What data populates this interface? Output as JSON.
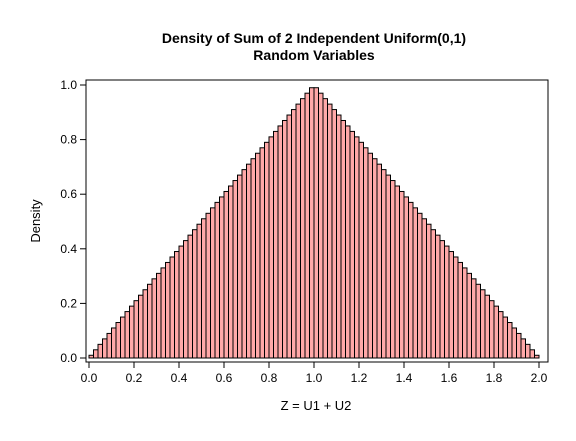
{
  "chart_data": {
    "type": "bar",
    "title_line1": "Density of Sum of 2 Independent Uniform(0,1)",
    "title_line2": "Random Variables",
    "xlabel": "Z = U1 + U2",
    "ylabel": "Density",
    "xlim": [
      0,
      2
    ],
    "ylim": [
      0,
      1
    ],
    "bin_width": 0.02,
    "bin_start": 0,
    "bin_count": 100,
    "bins": "triangular density f(z) = z for z<1, 2-z for z>=1, evaluated at bin centers",
    "x_ticks": [
      "0.0",
      "0.2",
      "0.4",
      "0.6",
      "0.8",
      "1.0",
      "1.2",
      "1.4",
      "1.6",
      "1.8",
      "2.0"
    ],
    "y_ticks": [
      "0.0",
      "0.2",
      "0.4",
      "0.6",
      "0.8",
      "1.0"
    ],
    "grid": false,
    "bar_fill": "#ffa8a8",
    "bar_stroke": "#000000"
  }
}
